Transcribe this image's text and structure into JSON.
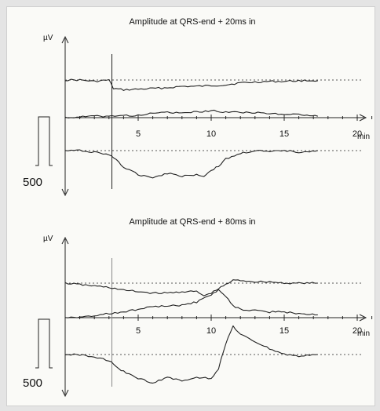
{
  "chart_data": [
    {
      "type": "line",
      "title": "Amplitude at QRS-end + 20ms in",
      "ylabel": "µV",
      "xlabel": "min",
      "xticks": [
        "5",
        "10",
        "15",
        "20"
      ],
      "xlim": [
        0,
        22
      ],
      "scale_bar_label": "500",
      "event_marker_min": 3.2,
      "series": [
        {
          "x": [
            0,
            1,
            2,
            3,
            3.3,
            4,
            5,
            6,
            7,
            8,
            9,
            10,
            11,
            12,
            13,
            14,
            15,
            16,
            17.3
          ],
          "y": [
            0,
            0,
            -0.1,
            0,
            -0.6,
            -0.7,
            -0.65,
            -0.6,
            -0.55,
            -0.45,
            -0.45,
            -0.4,
            -0.35,
            -0.2,
            -0.15,
            -0.1,
            -0.1,
            -0.05,
            -0.05
          ]
        },
        {
          "x": [
            0,
            1,
            2,
            3,
            4,
            5,
            6,
            7,
            8,
            9,
            10,
            11,
            12,
            13,
            14,
            15,
            16,
            17.3
          ],
          "y": [
            0,
            0.05,
            0.1,
            0.1,
            0.15,
            0.15,
            0.3,
            0.4,
            0.3,
            0.4,
            0.5,
            0.4,
            0.4,
            0.35,
            0.3,
            0.2,
            0.25,
            0.1
          ]
        },
        {
          "x": [
            0,
            1,
            2,
            3,
            3.5,
            4,
            5,
            6,
            7,
            8,
            9,
            9.5,
            10,
            10.5,
            11,
            12,
            13,
            14,
            15,
            16,
            17.3
          ],
          "y": [
            0,
            0,
            -0.1,
            -0.3,
            -0.6,
            -1.2,
            -1.7,
            -1.9,
            -1.6,
            -1.8,
            -1.7,
            -1.8,
            -1.4,
            -1.1,
            -0.6,
            -0.2,
            0,
            -0.1,
            0,
            -0.1,
            0
          ]
        }
      ]
    },
    {
      "type": "line",
      "title": "Amplitude at QRS-end + 80ms in",
      "ylabel": "µV",
      "xlabel": "min",
      "xticks": [
        "5",
        "10",
        "15",
        "20"
      ],
      "xlim": [
        0,
        22
      ],
      "scale_bar_label": "500",
      "event_marker_min": 3.2,
      "series": [
        {
          "x": [
            0,
            1,
            2,
            3,
            4,
            5,
            6,
            7,
            8,
            9,
            9.5,
            10,
            10.5,
            11,
            11.5,
            12,
            13,
            14,
            15,
            16,
            17.3
          ],
          "y": [
            0,
            -0.1,
            -0.2,
            -0.3,
            -0.5,
            -0.6,
            -0.7,
            -0.7,
            -0.6,
            -0.6,
            -0.9,
            -0.7,
            -0.4,
            -0.1,
            0.2,
            0.2,
            0.1,
            0.1,
            0,
            0,
            0
          ]
        },
        {
          "x": [
            0,
            1,
            2,
            3,
            4,
            5,
            6,
            7,
            8,
            9,
            10,
            10.5,
            11,
            11.5,
            12,
            13,
            14,
            15,
            16,
            17.3
          ],
          "y": [
            0,
            0.05,
            0.1,
            0.3,
            0.4,
            0.6,
            0.8,
            0.8,
            0.9,
            1.1,
            1.6,
            2.0,
            1.5,
            0.8,
            0.6,
            0.5,
            0.4,
            0.4,
            0.3,
            0.2
          ]
        },
        {
          "x": [
            0,
            1,
            2,
            3,
            3.5,
            4,
            5,
            6,
            7,
            8,
            9,
            10,
            10.5,
            11,
            11.5,
            12,
            13,
            14,
            15,
            16,
            17.3
          ],
          "y": [
            0,
            0,
            -0.2,
            -0.4,
            -0.9,
            -1.2,
            -1.7,
            -2.0,
            -1.6,
            -1.9,
            -1.6,
            -1.7,
            -1.0,
            0.8,
            2.0,
            1.4,
            0.9,
            0.4,
            0,
            -0.1,
            0
          ]
        }
      ]
    }
  ]
}
